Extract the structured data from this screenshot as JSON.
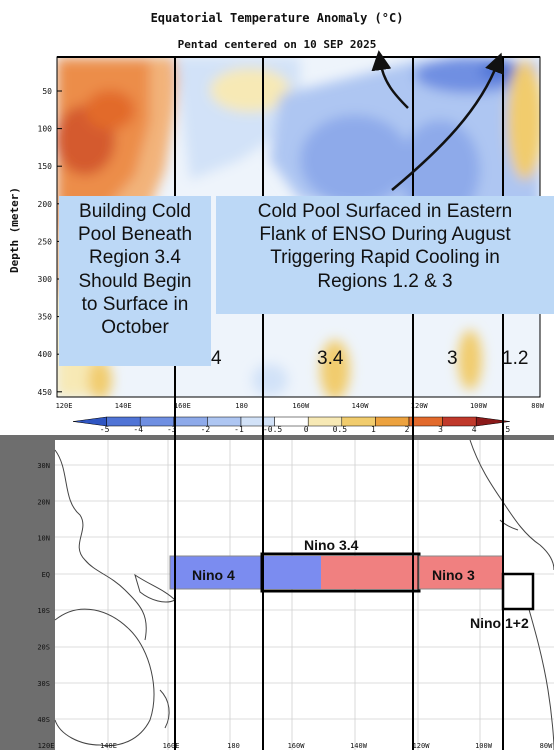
{
  "chart_data": [
    {
      "type": "heatmap",
      "title": "Equatorial Temperature Anomaly (°C)",
      "subtitle": "Pentad centered on 10 SEP 2025",
      "ylabel": "Depth (meter)",
      "x_ticks": [
        "120E",
        "140E",
        "160E",
        "180",
        "160W",
        "140W",
        "120W",
        "100W",
        "80W"
      ],
      "y_ticks": [
        "50",
        "100",
        "150",
        "200",
        "250",
        "300",
        "350",
        "400",
        "450"
      ],
      "colorbar_ticks": [
        "-5",
        "-4",
        "-3",
        "-2",
        "-1",
        "-0.5",
        "0",
        "0.5",
        "1",
        "2",
        "3",
        "4",
        "5"
      ],
      "colorbar_colors": [
        "#2f55c2",
        "#5074d6",
        "#6f8fe2",
        "#8eaaea",
        "#aec6f2",
        "#d2e2f8",
        "#ffffff",
        "#f7e9b5",
        "#f1cc6d",
        "#eca23f",
        "#e26a2c",
        "#c0392b",
        "#8b1a1a"
      ]
    },
    {
      "type": "map",
      "x_ticks": [
        "120E",
        "140E",
        "160E",
        "180",
        "160W",
        "140W",
        "120W",
        "100W",
        "80W"
      ],
      "y_ticks": [
        "30N",
        "20N",
        "10N",
        "EQ",
        "10S",
        "20S",
        "30S",
        "40S"
      ],
      "regions": [
        {
          "name": "Nino 4",
          "color": "#7b8cf0"
        },
        {
          "name": "Nino 3.4",
          "color": "#f08080"
        },
        {
          "name": "Nino 3",
          "color": "#f08080"
        },
        {
          "name": "Nino 1+2",
          "color": "#ffffff"
        }
      ]
    }
  ],
  "callouts": {
    "left": [
      "Building Cold",
      "Pool Beneath",
      "Region 3.4",
      "Should Begin",
      "to Surface in",
      "October"
    ],
    "right": [
      "Cold Pool Surfaced in Eastern",
      "Flank of ENSO During August",
      "Triggering Rapid Cooling in",
      "Regions 1.2 & 3"
    ]
  },
  "region_labels": [
    "4",
    "3.4",
    "3",
    "1.2"
  ],
  "map_labels": {
    "nino4": "Nino 4",
    "nino34": "Nino 3.4",
    "nino3": "Nino 3",
    "nino12": "Nino 1+2"
  }
}
